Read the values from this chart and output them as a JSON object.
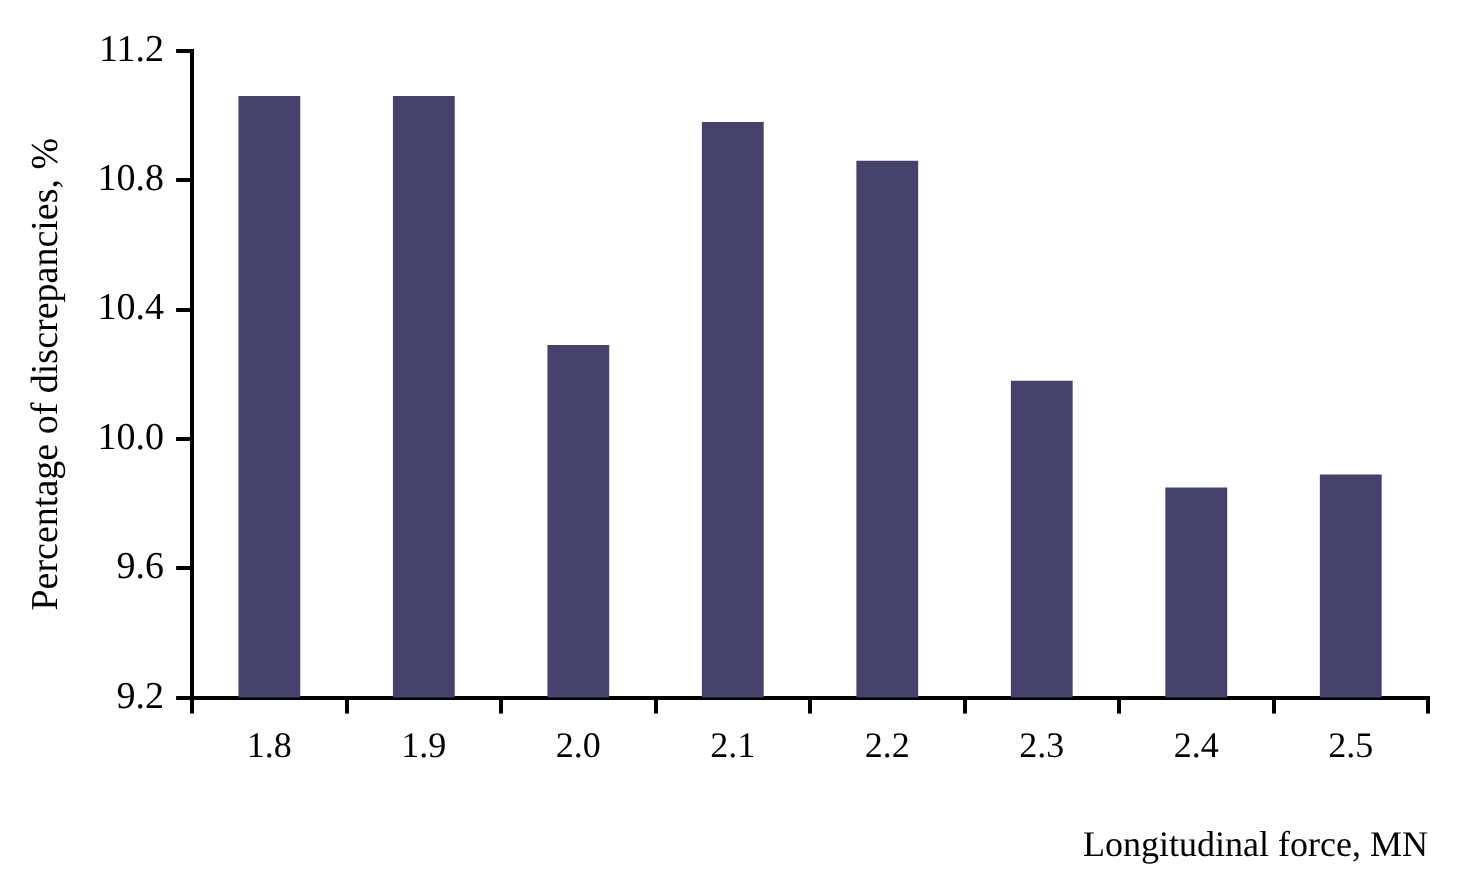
{
  "chart_data": {
    "type": "bar",
    "xlabel": "Longitudinal force, MN",
    "ylabel": "Percentage of discrepancies, %",
    "categories": [
      "1.8",
      "1.9",
      "2.0",
      "2.1",
      "2.2",
      "2.3",
      "2.4",
      "2.5"
    ],
    "values": [
      11.06,
      11.06,
      10.29,
      10.98,
      10.86,
      10.18,
      9.85,
      9.89
    ],
    "color": "#45416a",
    "ylim": [
      9.2,
      11.2
    ],
    "yticks": [
      {
        "value": 9.2,
        "label": "9.2"
      },
      {
        "value": 9.6,
        "label": "9.6"
      },
      {
        "value": 10.0,
        "label": "10.0"
      },
      {
        "value": 10.4,
        "label": "10.4"
      },
      {
        "value": 10.8,
        "label": "10.8"
      },
      {
        "value": 11.2,
        "label": "11.2"
      }
    ],
    "grid": false,
    "legend": false
  }
}
